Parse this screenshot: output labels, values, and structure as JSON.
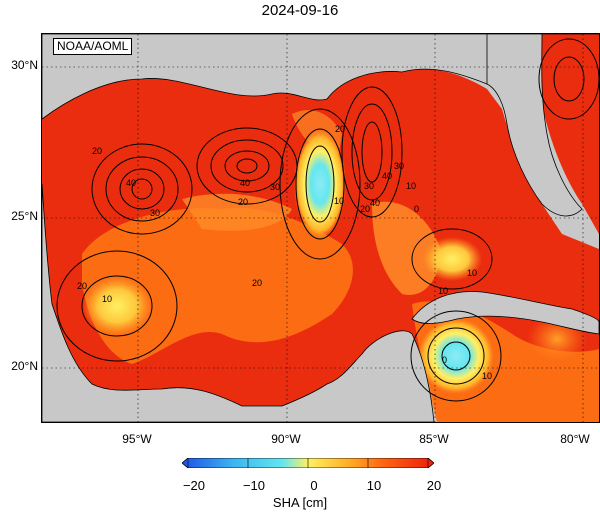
{
  "title": "2024-09-16",
  "credit": "NOAA/AOML",
  "lat_labels": [
    "30°N",
    "25°N",
    "20°N"
  ],
  "lon_labels": [
    "95°W",
    "90°W",
    "85°W",
    "80°W"
  ],
  "colorbar": {
    "ticks": [
      "−20",
      "−10",
      "0",
      "10",
      "20"
    ],
    "label": "SHA [cm]",
    "colors": [
      "#1e50e6",
      "#3cb4f0",
      "#64e6f0",
      "#fff064",
      "#ffb428",
      "#ff6414",
      "#eb1e0a"
    ]
  },
  "contour_labels": [
    "20",
    "40",
    "30",
    "20",
    "40",
    "30",
    "20",
    "30",
    "40",
    "10",
    "20",
    "30",
    "40",
    "0",
    "10",
    "20",
    "10",
    "20",
    "10",
    "0",
    "10",
    "10"
  ],
  "colors": {
    "land": "#c8c8c8",
    "high": "#eb1e0a",
    "mid": "#ff8c28",
    "low": "#64e6f0"
  }
}
